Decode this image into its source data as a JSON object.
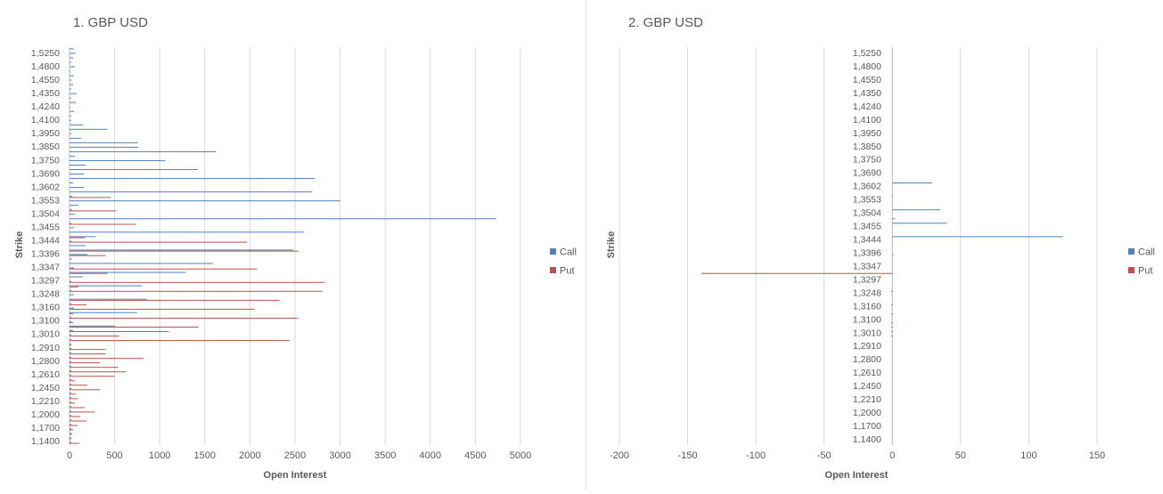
{
  "chart_data": [
    {
      "type": "bar",
      "orientation": "horizontal",
      "title": "1. GBP USD",
      "xlabel": "Open Interest",
      "ylabel": "Strike",
      "xlim": [
        0,
        5000
      ],
      "xticks": [
        0,
        500,
        1000,
        1500,
        2000,
        2500,
        3000,
        3500,
        4000,
        4500,
        5000
      ],
      "ytick_labels": [
        "1,5250",
        "1,4800",
        "1,4550",
        "1,4350",
        "1,4240",
        "1,4100",
        "1,3950",
        "1,3850",
        "1,3750",
        "1,3690",
        "1,3602",
        "1,3553",
        "1,3504",
        "1,3455",
        "1,3444",
        "1,3396",
        "1,3347",
        "1,3297",
        "1,3248",
        "1,3160",
        "1,3100",
        "1,3010",
        "1,2910",
        "1,2800",
        "1,2610",
        "1,2450",
        "1,2210",
        "1,2000",
        "1,1700",
        "1,1400"
      ],
      "grid": "vertical",
      "legend": "right",
      "series": [
        {
          "name": "Call",
          "color": "#4f81bd",
          "values": [
            50,
            70,
            40,
            20,
            60,
            10,
            50,
            20,
            40,
            20,
            80,
            20,
            70,
            10,
            50,
            20,
            20,
            150,
            420,
            20,
            130,
            760,
            760,
            1620,
            60,
            1060,
            180,
            1420,
            160,
            2720,
            40,
            160,
            2690,
            30,
            3000,
            100,
            30,
            60,
            4730,
            20,
            50,
            2600,
            290,
            20,
            180,
            2480,
            200,
            30,
            1590,
            50,
            1290,
            150,
            20,
            800,
            20,
            50,
            860,
            20,
            50,
            750,
            20,
            20,
            500,
            40,
            20,
            20,
            20,
            20,
            20,
            20,
            20,
            20,
            20,
            20,
            20,
            20,
            20,
            20,
            20,
            20,
            20,
            20,
            20,
            20,
            20,
            20,
            20,
            20,
            20
          ]
        },
        {
          "name": "Put",
          "color": "#c0504d",
          "values": [
            0,
            0,
            0,
            0,
            0,
            0,
            0,
            0,
            0,
            0,
            0,
            0,
            0,
            0,
            0,
            0,
            0,
            0,
            0,
            0,
            0,
            0,
            0,
            0,
            0,
            0,
            0,
            0,
            0,
            0,
            0,
            0,
            0,
            460,
            0,
            0,
            520,
            0,
            0,
            740,
            0,
            0,
            170,
            1970,
            0,
            2540,
            400,
            0,
            0,
            2080,
            420,
            0,
            2830,
            100,
            2800,
            0,
            2330,
            190,
            2050,
            40,
            2530,
            40,
            1430,
            1100,
            550,
            2440,
            20,
            400,
            400,
            820,
            340,
            540,
            630,
            500,
            60,
            200,
            340,
            70,
            90,
            60,
            170,
            280,
            120,
            190,
            90,
            40,
            30,
            20,
            110
          ]
        }
      ]
    },
    {
      "type": "bar",
      "orientation": "horizontal",
      "title": "2. GBP USD",
      "xlabel": "Open Interest",
      "ylabel": "Strike",
      "xlim": [
        -200,
        150
      ],
      "xticks": [
        -200,
        -150,
        -100,
        -50,
        0,
        50,
        100,
        150
      ],
      "ytick_labels": [
        "1,5250",
        "1,4800",
        "1,4550",
        "1,4350",
        "1,4240",
        "1,4100",
        "1,3950",
        "1,3850",
        "1,3750",
        "1,3690",
        "1,3602",
        "1,3553",
        "1,3504",
        "1,3455",
        "1,3444",
        "1,3396",
        "1,3347",
        "1,3297",
        "1,3248",
        "1,3160",
        "1,3100",
        "1,3010",
        "1,2910",
        "1,2800",
        "1,2610",
        "1,2450",
        "1,2210",
        "1,2000",
        "1,1700",
        "1,1400"
      ],
      "grid": "vertical",
      "legend": "right",
      "series": [
        {
          "name": "Call",
          "color": "#4f81bd",
          "values": [
            0,
            0,
            0,
            0,
            0,
            0,
            0,
            0,
            0,
            0,
            0,
            0,
            0,
            0,
            0,
            0,
            0,
            0,
            0,
            0,
            0,
            0,
            0,
            0,
            0,
            0,
            0,
            0,
            0,
            0,
            29,
            0,
            0,
            0.5,
            0,
            0,
            35,
            0,
            2,
            40,
            0,
            0,
            125,
            0,
            0,
            0,
            1,
            0,
            0,
            0,
            0,
            0,
            0,
            0,
            0,
            0,
            0,
            0,
            0,
            0,
            0,
            0,
            0,
            0,
            0,
            0,
            0,
            0,
            0,
            0,
            0,
            0,
            0,
            0,
            0,
            0,
            0,
            0,
            0,
            0,
            0,
            0,
            0,
            0,
            0,
            0,
            0,
            0,
            0
          ]
        },
        {
          "name": "Put",
          "color": "#c0504d",
          "values": [
            0,
            0,
            0,
            0,
            0,
            0,
            0,
            0,
            0,
            0,
            0,
            0,
            0,
            0,
            0,
            0,
            0,
            0,
            0,
            0,
            0,
            0,
            0,
            0,
            0,
            0,
            0,
            0,
            0,
            0,
            0,
            0,
            0,
            0,
            0,
            0,
            0,
            0,
            0,
            0,
            0,
            0,
            0,
            0,
            0,
            0,
            0,
            0,
            0,
            0,
            -140,
            0,
            0,
            0,
            -1,
            0,
            0,
            -1,
            0,
            -1,
            0,
            -1,
            -1,
            -1,
            -1,
            0,
            0,
            0,
            0,
            0,
            0,
            0,
            0,
            0,
            0,
            0,
            0,
            0,
            0,
            0,
            0,
            0,
            0,
            0,
            0,
            0,
            0,
            0,
            0,
            0
          ]
        }
      ]
    }
  ]
}
